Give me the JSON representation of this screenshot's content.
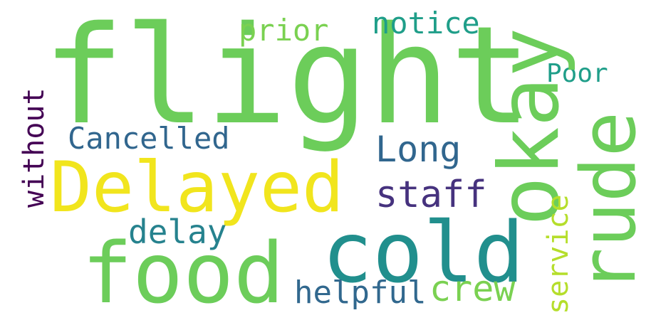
{
  "words": [
    {
      "text": "flight",
      "color": "#6ccd5a"
    },
    {
      "text": "Delayed",
      "color": "#f1e51d"
    },
    {
      "text": "food",
      "color": "#6ccd5a"
    },
    {
      "text": "cold",
      "color": "#218f8d"
    },
    {
      "text": "okay",
      "color": "#6ccd5a"
    },
    {
      "text": "rude",
      "color": "#6ccd5a"
    },
    {
      "text": "Long",
      "color": "#31668e"
    },
    {
      "text": "staff",
      "color": "#46327e"
    },
    {
      "text": "Cancelled",
      "color": "#31668e"
    },
    {
      "text": "delay",
      "color": "#26828e"
    },
    {
      "text": "without",
      "color": "#440154"
    },
    {
      "text": "prior",
      "color": "#7ad151"
    },
    {
      "text": "notice",
      "color": "#1f9e89"
    },
    {
      "text": "Poor",
      "color": "#1f9e89"
    },
    {
      "text": "service",
      "color": "#b5de2b"
    },
    {
      "text": "helpful",
      "color": "#31688e"
    },
    {
      "text": "crew",
      "color": "#7ad151"
    }
  ]
}
